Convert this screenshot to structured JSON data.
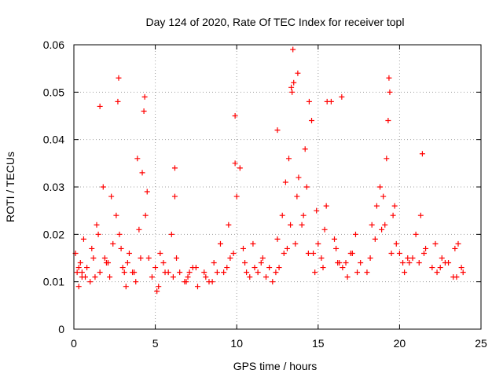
{
  "chart_data": {
    "type": "scatter",
    "title": "Day 124 of 2020, Rate Of TEC Index for receiver topl",
    "xlabel": "GPS time / hours",
    "ylabel": "ROTI / TECUs",
    "xlim": [
      0,
      25
    ],
    "ylim": [
      0,
      0.06
    ],
    "x_ticks": [
      0,
      5,
      10,
      15,
      20,
      25
    ],
    "x_tick_labels": [
      "0",
      "5",
      "10",
      "15",
      "20",
      "25"
    ],
    "y_ticks": [
      0,
      0.01,
      0.02,
      0.03,
      0.04,
      0.05,
      0.06
    ],
    "y_tick_labels": [
      "0",
      "0.01",
      "0.02",
      "0.03",
      "0.04",
      "0.05",
      "0.06"
    ],
    "grid": true,
    "marker": "plus",
    "colors": {
      "points": "#ff0000",
      "grid": "#a0a0a0",
      "axes": "#000000"
    },
    "series": [
      {
        "name": "ROTI",
        "x": [
          0.1,
          0.2,
          0.3,
          0.4,
          0.5,
          0.6,
          0.8,
          1.0,
          1.2,
          1.4,
          1.6,
          1.8,
          2.0,
          2.2,
          2.4,
          2.6,
          2.7,
          2.8,
          3.0,
          3.2,
          3.4,
          3.6,
          3.8,
          4.0,
          4.2,
          4.3,
          4.4,
          4.6,
          4.8,
          5.0,
          5.2,
          5.5,
          5.8,
          6.0,
          6.2,
          6.5,
          6.8,
          7.0,
          7.3,
          7.6,
          8.0,
          8.3,
          8.6,
          9.0,
          9.2,
          9.5,
          9.8,
          10.0,
          10.2,
          10.5,
          10.8,
          11.0,
          11.3,
          11.6,
          12.0,
          12.2,
          12.5,
          12.8,
          13.0,
          13.2,
          13.4,
          13.5,
          13.7,
          14.0,
          14.2,
          14.4,
          14.6,
          14.8,
          15.0,
          15.2,
          15.5,
          15.8,
          16.0,
          16.2,
          16.5,
          16.8,
          17.0,
          17.3,
          17.6,
          18.0,
          18.3,
          18.6,
          18.8,
          19.0,
          19.2,
          19.4,
          19.6,
          19.8,
          20.0,
          20.3,
          20.6,
          21.0,
          21.3,
          21.6,
          22.0,
          22.3,
          22.6,
          23.0,
          23.3,
          23.6,
          23.9,
          0.3,
          0.7,
          1.1,
          1.5,
          1.9,
          2.3,
          2.9,
          3.3,
          3.7,
          4.5,
          5.1,
          5.6,
          6.3,
          6.9,
          7.5,
          8.1,
          8.8,
          9.4,
          9.9,
          10.4,
          11.1,
          11.8,
          12.4,
          12.9,
          13.3,
          13.8,
          14.3,
          14.9,
          15.4,
          16.1,
          16.7,
          17.4,
          18.2,
          18.9,
          19.3,
          19.7,
          20.2,
          20.8,
          21.5,
          22.2,
          22.8,
          23.4,
          23.8,
          0.5,
          1.3,
          2.1,
          3.1,
          4.1,
          5.3,
          6.1,
          7.1,
          8.5,
          9.6,
          10.6,
          11.5,
          12.6,
          13.1,
          13.6,
          14.1,
          14.7,
          15.3,
          16.3,
          17.1,
          18.5,
          19.1,
          19.5,
          20.5,
          21.2,
          22.5,
          23.5,
          2.75,
          4.35,
          9.9,
          13.45,
          13.75,
          14.45,
          15.55,
          16.45,
          19.35,
          13.35,
          12.5,
          3.9,
          1.6,
          21.4,
          6.2
        ],
        "y": [
          0.016,
          0.012,
          0.009,
          0.014,
          0.011,
          0.019,
          0.013,
          0.01,
          0.015,
          0.022,
          0.012,
          0.03,
          0.014,
          0.011,
          0.018,
          0.024,
          0.048,
          0.02,
          0.013,
          0.009,
          0.016,
          0.012,
          0.01,
          0.021,
          0.033,
          0.046,
          0.024,
          0.015,
          0.011,
          0.013,
          0.009,
          0.014,
          0.012,
          0.02,
          0.028,
          0.012,
          0.01,
          0.011,
          0.013,
          0.009,
          0.012,
          0.01,
          0.014,
          0.018,
          0.012,
          0.022,
          0.016,
          0.028,
          0.034,
          0.014,
          0.011,
          0.018,
          0.012,
          0.015,
          0.013,
          0.01,
          0.019,
          0.024,
          0.031,
          0.036,
          0.05,
          0.052,
          0.028,
          0.022,
          0.038,
          0.016,
          0.044,
          0.012,
          0.018,
          0.015,
          0.026,
          0.048,
          0.019,
          0.014,
          0.013,
          0.011,
          0.016,
          0.02,
          0.014,
          0.012,
          0.022,
          0.026,
          0.03,
          0.028,
          0.036,
          0.05,
          0.024,
          0.018,
          0.016,
          0.012,
          0.014,
          0.02,
          0.024,
          0.017,
          0.013,
          0.012,
          0.015,
          0.014,
          0.011,
          0.018,
          0.012,
          0.013,
          0.011,
          0.017,
          0.02,
          0.015,
          0.028,
          0.017,
          0.014,
          0.012,
          0.029,
          0.008,
          0.012,
          0.015,
          0.01,
          0.013,
          0.011,
          0.012,
          0.013,
          0.035,
          0.017,
          0.013,
          0.011,
          0.012,
          0.016,
          0.022,
          0.032,
          0.03,
          0.025,
          0.021,
          0.017,
          0.014,
          0.012,
          0.015,
          0.021,
          0.044,
          0.026,
          0.014,
          0.015,
          0.016,
          0.018,
          0.014,
          0.017,
          0.013,
          0.012,
          0.011,
          0.014,
          0.012,
          0.015,
          0.016,
          0.011,
          0.012,
          0.01,
          0.015,
          0.012,
          0.014,
          0.013,
          0.017,
          0.018,
          0.024,
          0.016,
          0.013,
          0.014,
          0.016,
          0.019,
          0.022,
          0.016,
          0.015,
          0.014,
          0.013,
          0.011,
          0.053,
          0.049,
          0.045,
          0.059,
          0.054,
          0.048,
          0.048,
          0.049,
          0.053,
          0.051,
          0.042,
          0.036,
          0.047,
          0.037,
          0.034
        ]
      }
    ]
  }
}
